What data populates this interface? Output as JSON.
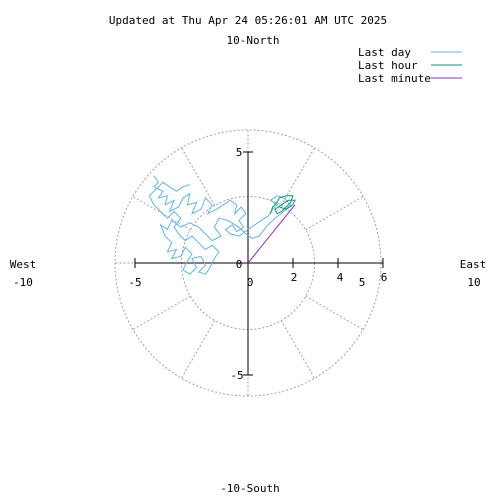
{
  "chart_data": {
    "type": "scatter",
    "title": "Updated at Thu Apr 24 05:26:01 AM UTC 2025",
    "polar": true,
    "rlim": [
      0,
      10
    ],
    "grid": true,
    "direction_labels": {
      "north": "10-North",
      "south": "-10-South",
      "west": "West",
      "west_value": "-10",
      "east": "East",
      "east_value": "10"
    },
    "axis_ticks": {
      "x_axis": [
        "-5",
        "0",
        "2",
        "4",
        "5",
        "6"
      ],
      "y_axis": [
        "5",
        "-5"
      ],
      "extra": [
        "0"
      ]
    },
    "legend": {
      "placement": "top-right",
      "items": [
        {
          "label": "Last day",
          "color": "#64b4e6"
        },
        {
          "label": "Last hour",
          "color": "#109070"
        },
        {
          "label": "Last minute",
          "color": "#9030c0"
        }
      ]
    },
    "series": [
      {
        "name": "Last day",
        "color": "#64b4e6",
        "points": [
          [
            -4.2,
            3.9
          ],
          [
            -4.0,
            3.6
          ],
          [
            -4.2,
            3.4
          ],
          [
            -3.8,
            3.2
          ],
          [
            -4.0,
            2.9
          ],
          [
            -3.6,
            3.0
          ],
          [
            -3.7,
            2.6
          ],
          [
            -3.3,
            2.8
          ],
          [
            -3.5,
            2.3
          ],
          [
            -3.1,
            2.5
          ],
          [
            -2.9,
            2.9
          ],
          [
            -2.6,
            3.1
          ],
          [
            -2.7,
            2.6
          ],
          [
            -2.3,
            2.7
          ],
          [
            -2.5,
            2.2
          ],
          [
            -2.1,
            2.4
          ],
          [
            -1.9,
            2.9
          ],
          [
            -1.6,
            2.6
          ],
          [
            -1.8,
            2.2
          ],
          [
            -1.4,
            2.4
          ],
          [
            -1.1,
            2.6
          ],
          [
            -0.8,
            2.8
          ],
          [
            -0.5,
            2.6
          ],
          [
            -0.6,
            2.2
          ],
          [
            -0.3,
            2.5
          ],
          [
            -0.1,
            2.2
          ],
          [
            -0.4,
            1.9
          ],
          [
            -0.2,
            1.6
          ],
          [
            -0.5,
            1.4
          ],
          [
            -0.7,
            1.7
          ],
          [
            -1.0,
            1.5
          ],
          [
            -0.8,
            1.3
          ],
          [
            -0.4,
            1.2
          ],
          [
            0.0,
            1.5
          ],
          [
            0.3,
            1.7
          ],
          [
            0.6,
            1.9
          ],
          [
            0.9,
            2.1
          ],
          [
            1.1,
            2.4
          ],
          [
            1.3,
            2.6
          ],
          [
            1.0,
            2.8
          ],
          [
            1.3,
            3.0
          ],
          [
            1.6,
            2.9
          ],
          [
            1.9,
            2.6
          ],
          [
            1.6,
            2.3
          ],
          [
            1.2,
            2.0
          ],
          [
            0.8,
            1.6
          ],
          [
            0.5,
            1.2
          ],
          [
            0.2,
            1.1
          ],
          [
            -0.1,
            1.3
          ],
          [
            -0.4,
            1.6
          ],
          [
            -0.9,
            1.9
          ],
          [
            -1.3,
            2.0
          ],
          [
            -1.5,
            1.6
          ],
          [
            -1.2,
            1.2
          ],
          [
            -1.6,
            1.0
          ],
          [
            -1.9,
            1.3
          ],
          [
            -2.2,
            1.6
          ],
          [
            -2.6,
            1.8
          ],
          [
            -3.0,
            1.6
          ],
          [
            -3.4,
            1.9
          ],
          [
            -3.6,
            1.5
          ],
          [
            -3.9,
            1.7
          ],
          [
            -3.7,
            1.2
          ],
          [
            -3.4,
            0.9
          ],
          [
            -3.6,
            0.5
          ],
          [
            -3.2,
            0.6
          ],
          [
            -3.4,
            0.2
          ],
          [
            -3.0,
            0.3
          ],
          [
            -2.8,
            0.7
          ],
          [
            -2.5,
            0.4
          ],
          [
            -2.7,
            0.1
          ],
          [
            -2.9,
            -0.3
          ],
          [
            -2.6,
            -0.5
          ],
          [
            -2.3,
            -0.2
          ],
          [
            -2.5,
            0.2
          ],
          [
            -2.1,
            0.3
          ],
          [
            -1.9,
            -0.1
          ],
          [
            -2.2,
            -0.4
          ],
          [
            -1.9,
            -0.5
          ],
          [
            -1.7,
            -0.2
          ],
          [
            -1.5,
            0.2
          ],
          [
            -1.3,
            0.5
          ],
          [
            -1.6,
            0.8
          ],
          [
            -1.9,
            0.6
          ],
          [
            -2.2,
            0.9
          ],
          [
            -2.5,
            1.2
          ],
          [
            -2.8,
            1.0
          ],
          [
            -3.1,
            1.3
          ],
          [
            -3.3,
            1.6
          ],
          [
            -3.0,
            2.0
          ],
          [
            -3.3,
            2.3
          ],
          [
            -3.6,
            2.0
          ],
          [
            -3.9,
            2.3
          ],
          [
            -4.2,
            2.6
          ],
          [
            -4.4,
            3.0
          ],
          [
            -4.1,
            3.3
          ],
          [
            -3.8,
            3.6
          ],
          [
            -3.5,
            3.4
          ],
          [
            -3.2,
            3.2
          ],
          [
            -2.9,
            3.4
          ],
          [
            -2.6,
            3.5
          ]
        ]
      },
      {
        "name": "Last hour",
        "color": "#109070",
        "points": [
          [
            1.0,
            2.2
          ],
          [
            1.1,
            2.5
          ],
          [
            1.3,
            2.7
          ],
          [
            1.4,
            2.9
          ],
          [
            1.7,
            3.0
          ],
          [
            2.0,
            3.0
          ],
          [
            1.9,
            2.7
          ],
          [
            1.7,
            2.5
          ],
          [
            1.5,
            2.3
          ],
          [
            1.3,
            2.2
          ],
          [
            1.2,
            2.4
          ],
          [
            1.5,
            2.6
          ],
          [
            1.8,
            2.8
          ],
          [
            2.1,
            2.8
          ],
          [
            2.0,
            2.6
          ],
          [
            1.7,
            2.4
          ],
          [
            1.4,
            2.5
          ]
        ]
      },
      {
        "name": "Last minute",
        "color": "#9030c0",
        "points": [
          [
            0.0,
            0.0
          ],
          [
            2.1,
            2.6
          ]
        ]
      }
    ]
  }
}
